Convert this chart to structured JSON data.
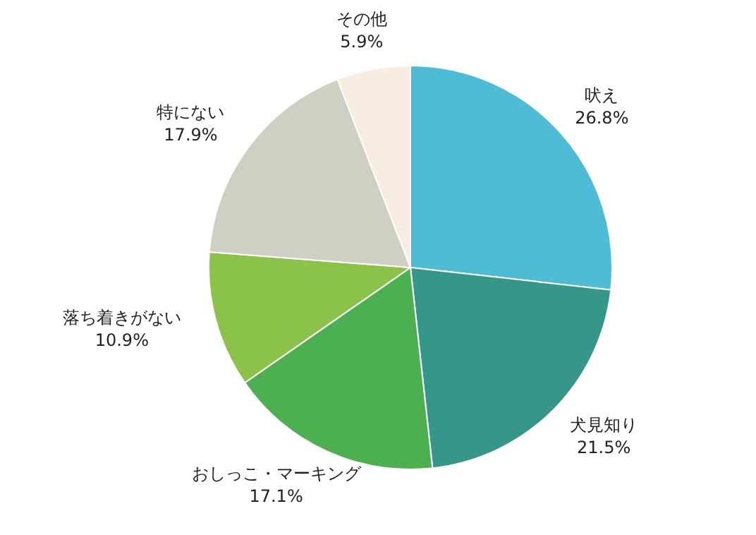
{
  "chart_data": {
    "type": "pie",
    "categories": [
      "吠え",
      "犬見知り",
      "おしっこ・マーキング",
      "落ち着きがない",
      "特にない",
      "その他"
    ],
    "values": [
      26.8,
      21.5,
      17.1,
      10.9,
      17.9,
      5.9
    ],
    "value_labels": [
      "26.8%",
      "21.5%",
      "17.1%",
      "10.9%",
      "17.9%",
      "5.9%"
    ],
    "colors": [
      "#4fbcd6",
      "#36968a",
      "#4caf50",
      "#8bc34a",
      "#cfcfc4",
      "#f7ede2"
    ],
    "legend": false
  }
}
